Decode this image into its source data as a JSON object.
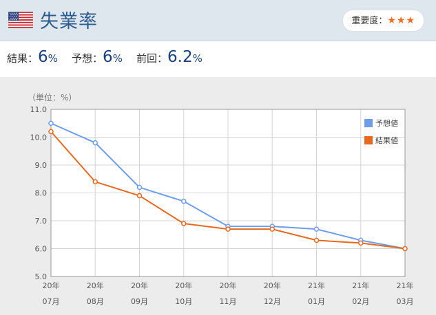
{
  "header": {
    "title": "失業率",
    "flag": "us-flag-icon",
    "importance_label": "重要度：",
    "importance_stars": "★★★"
  },
  "results": {
    "actual_label": "結果：",
    "actual_value": "6",
    "forecast_label": "予想：",
    "forecast_value": "6",
    "previous_label": "前回：",
    "previous_value": "6.2",
    "unit": "%"
  },
  "colors": {
    "forecast": "#6d9ceb",
    "actual": "#e6691f",
    "accent_title": "#2f5c8f"
  },
  "chart_data": {
    "type": "line",
    "unit_label": "（単位：%）",
    "categories": [
      [
        "20年",
        "07月"
      ],
      [
        "20年",
        "08月"
      ],
      [
        "20年",
        "09月"
      ],
      [
        "20年",
        "10月"
      ],
      [
        "20年",
        "11月"
      ],
      [
        "20年",
        "12月"
      ],
      [
        "21年",
        "01月"
      ],
      [
        "21年",
        "02月"
      ],
      [
        "21年",
        "03月"
      ]
    ],
    "series": [
      {
        "name": "予想値",
        "color": "#6d9ceb",
        "values": [
          10.5,
          9.8,
          8.2,
          7.7,
          6.8,
          6.8,
          6.7,
          6.3,
          6.0
        ]
      },
      {
        "name": "結果値",
        "color": "#e6691f",
        "values": [
          10.2,
          8.4,
          7.9,
          6.9,
          6.7,
          6.7,
          6.3,
          6.2,
          6.0
        ]
      }
    ],
    "ylim": [
      5.0,
      11.0
    ],
    "yticks": [
      "5.0",
      "6.0",
      "7.0",
      "8.0",
      "9.0",
      "10.0",
      "11.0"
    ],
    "grid": true,
    "legend_position": "top-right"
  }
}
